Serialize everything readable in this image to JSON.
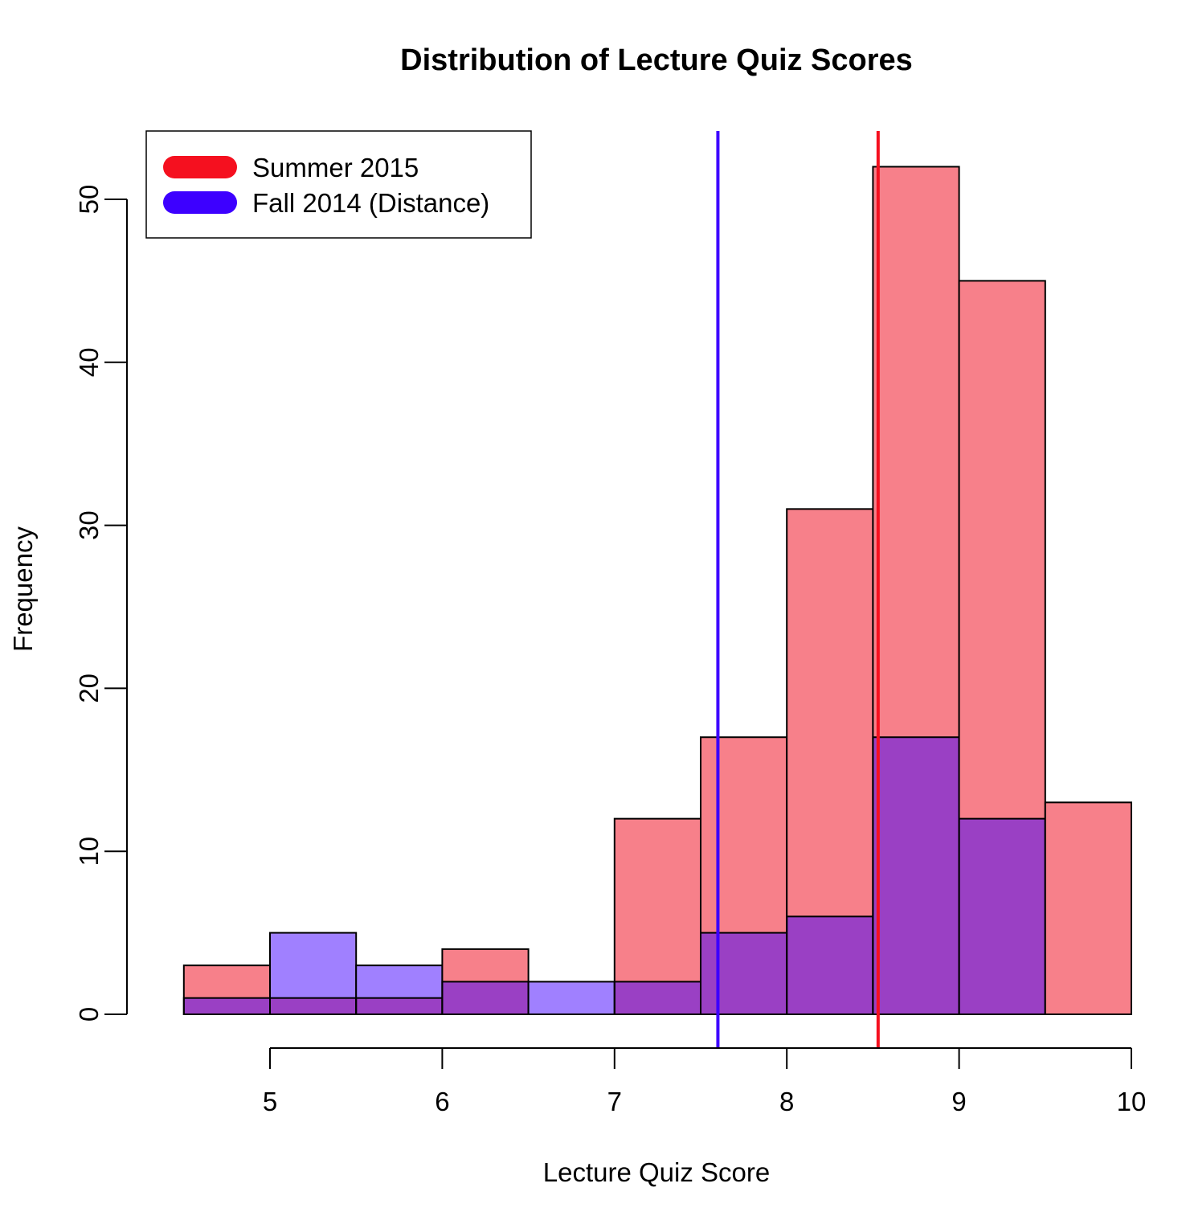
{
  "chart_data": {
    "type": "bar",
    "subtype": "overlaid-histogram",
    "title": "Distribution of Lecture Quiz Scores",
    "xlabel": "Lecture Quiz Score",
    "ylabel": "Frequency",
    "xlim": [
      4.3,
      10
    ],
    "ylim": [
      0,
      54
    ],
    "x_ticks": [
      5,
      6,
      7,
      8,
      9,
      10
    ],
    "y_ticks": [
      0,
      10,
      20,
      30,
      40,
      50
    ],
    "bin_edges": [
      4.5,
      5.0,
      5.5,
      6.0,
      6.5,
      7.0,
      7.5,
      8.0,
      8.5,
      9.0,
      9.5,
      10.0
    ],
    "grid": false,
    "legend_position": "top-left",
    "series": [
      {
        "name": "Summer 2015",
        "color": "#F5101F",
        "fill": "#F7808A",
        "values": [
          3,
          1,
          1,
          4,
          0,
          12,
          17,
          31,
          52,
          45,
          13
        ],
        "mean_line": 8.53
      },
      {
        "name": "Fall 2014 (Distance)",
        "color": "#3D00FF",
        "fill": "#A080FF",
        "values": [
          1,
          5,
          3,
          2,
          2,
          2,
          5,
          6,
          17,
          12,
          0
        ],
        "mean_line": 7.6
      }
    ],
    "overlap_fill": "#9A40C4"
  }
}
